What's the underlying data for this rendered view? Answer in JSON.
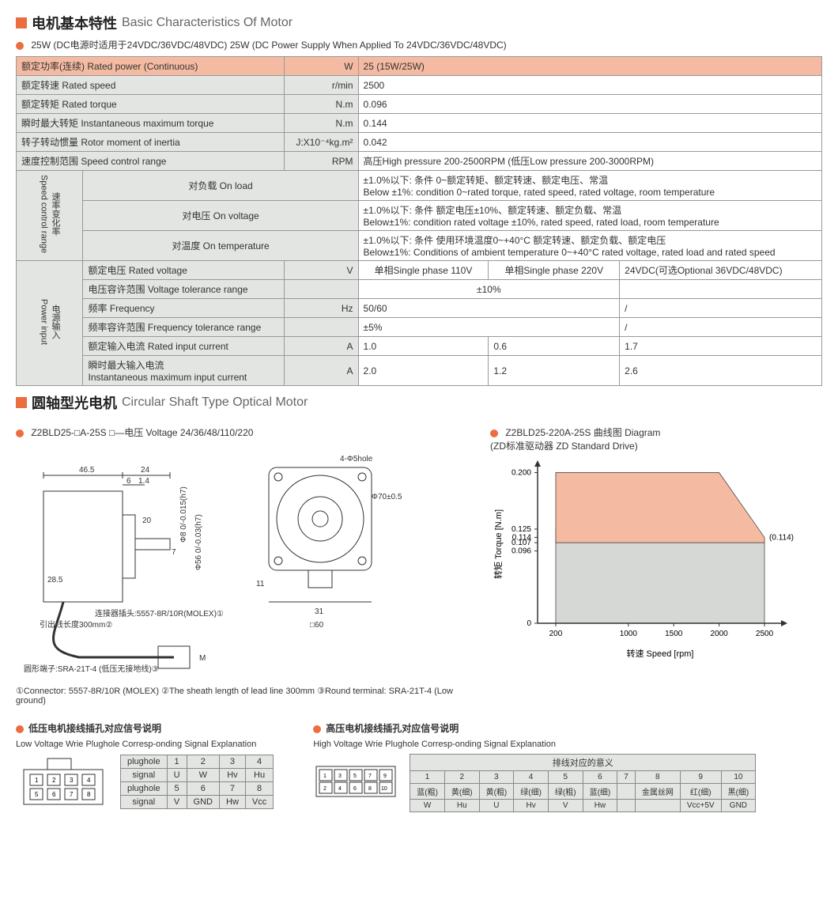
{
  "sec1": {
    "title_cn": "电机基本特性",
    "title_en": "Basic Characteristics Of Motor",
    "sub": "25W (DC电源时适用于24VDC/36VDC/48VDC)  25W (DC Power Supply When Applied To 24VDC/36VDC/48VDC)"
  },
  "spec": {
    "r1": {
      "label": "额定功率(连续) Rated power (Continuous)",
      "unit": "W",
      "val": "25 (15W/25W)"
    },
    "r2": {
      "label": "额定转速 Rated speed",
      "unit": "r/min",
      "val": "2500"
    },
    "r3": {
      "label": "额定转矩 Rated torque",
      "unit": "N.m",
      "val": "0.096"
    },
    "r4": {
      "label": "瞬时最大转矩 Instantaneous maximum torque",
      "unit": "N.m",
      "val": "0.144"
    },
    "r5": {
      "label": "转子转动惯量 Rotor moment of inertia",
      "unit": "J:X10⁻⁴kg.m²",
      "val": "0.042"
    },
    "r6": {
      "label": "速度控制范围 Speed control range",
      "unit": "RPM",
      "val": "高压High pressure 200-2500RPM (低压Low pressure 200-3000RPM)"
    },
    "scr_group": "速率变化率\nSpeed control range",
    "scr1": {
      "label": "对负载 On load",
      "val": "±1.0%以下: 条件 0~额定转矩、额定转速、额定电压、常温\nBelow ±1%: condition 0~rated torque, rated speed, rated voltage, room temperature"
    },
    "scr2": {
      "label": "对电压 On voltage",
      "val": "±1.0%以下: 条件 额定电压±10%、额定转速、额定负载、常温\nBelow±1%: condition rated voltage ±10%, rated speed, rated load, room temperature"
    },
    "scr3": {
      "label": "对温度 On temperature",
      "val": "±1.0%以下:  条件 使用环境温度0~+40°C 额定转速、额定负载、额定电压\nBelow±1%: Conditions of ambient temperature 0~+40°C rated voltage, rated load and rated speed"
    },
    "pi_group": "电源输入\nPower input",
    "pi1": {
      "label": "额定电压 Rated voltage",
      "unit": "V",
      "v1": "单相Single phase 110V",
      "v2": "单相Single phase 220V",
      "v3": "24VDC(可选Optional 36VDC/48VDC)"
    },
    "pi2": {
      "label": "电压容许范围 Voltage tolerance range",
      "unit": "",
      "v12": "±10%",
      "v3": ""
    },
    "pi3": {
      "label": "频率 Frequency",
      "unit": "Hz",
      "v12": "50/60",
      "v3": "/"
    },
    "pi4": {
      "label": "频率容许范围 Frequency tolerance range",
      "unit": "",
      "v12": "±5%",
      "v3": "/"
    },
    "pi5": {
      "label": "额定输入电流 Rated input current",
      "unit": "A",
      "v1": "1.0",
      "v2": "0.6",
      "v3": "1.7"
    },
    "pi6": {
      "label": "瞬时最大输入电流\nInstantaneous maximum input current",
      "unit": "A",
      "v1": "2.0",
      "v2": "1.2",
      "v3": "2.6"
    }
  },
  "sec2": {
    "title_cn": "圆轴型光电机",
    "title_en": "Circular Shaft Type Optical Motor",
    "model": "Z2BLD25-□A-25S   □—电压 Voltage 24/36/48/110/220",
    "dims": {
      "d465": "46.5",
      "d24": "24",
      "d6": "6",
      "d14": "1.4",
      "d20": "20",
      "d7": "7",
      "d285": "28.5",
      "h7a": "Φ8 0/-0.015(h7)",
      "h7b": "Φ56 0/-0.03(h7)",
      "conn": "连接器插头:5557-8R/10R(MOLEX)①",
      "lead": "引出线长度300mm②",
      "term": "圆形端子:SRA-21T-4\n(低压无接地线)③",
      "m": "M",
      "hole": "4-Φ5hole",
      "d70": "Φ70±0.5",
      "d31": "31",
      "d11": "11",
      "sq60": "□60"
    },
    "footnote": "①Connector: 5557-8R/10R (MOLEX)  ②The sheath length of lead line 300mm  ③Round terminal: SRA-21T-4 (Low ground)"
  },
  "chart": {
    "title": "Z2BLD25-220A-25S 曲线图 Diagram\n(ZD标准驱动器 ZD Standard Drive)",
    "x_label": "转速 Speed [rpm]",
    "y_label": "转矩 Torque [N.m]",
    "x_ticks": [
      "200",
      "1000",
      "1500",
      "2000",
      "2500"
    ],
    "y_ticks": [
      "0",
      "0.096",
      "0.107",
      "0.114",
      "0.125",
      "0.200"
    ],
    "annot": "(0.114)",
    "orange_region": {
      "points": [
        [
          200,
          0.2
        ],
        [
          2000,
          0.2
        ],
        [
          2500,
          0.114
        ],
        [
          2500,
          0.107
        ],
        [
          200,
          0.107
        ]
      ]
    },
    "gray_region": {
      "points": [
        [
          200,
          0.125
        ],
        [
          2000,
          0.125
        ],
        [
          2500,
          0.107
        ],
        [
          2500,
          0
        ],
        [
          200,
          0
        ]
      ]
    },
    "colors": {
      "orange": "#f5bba2",
      "gray": "#d6d8d5",
      "line": "#333"
    },
    "xlim": [
      0,
      2700
    ],
    "ylim": [
      0,
      0.21
    ]
  },
  "lv": {
    "title_cn": "低压电机接线插孔对应信号说明",
    "title_en": "Low Voltage  Wrie Plughole Corresp-onding Signal Explanation",
    "headers": [
      "plughole",
      "1",
      "2",
      "3",
      "4"
    ],
    "r1": [
      "signal",
      "U",
      "W",
      "Hv",
      "Hu"
    ],
    "r2": [
      "plughole",
      "5",
      "6",
      "7",
      "8"
    ],
    "r3": [
      "signal",
      "V",
      "GND",
      "Hw",
      "Vcc"
    ]
  },
  "hv": {
    "title_cn": "高压电机接线插孔对应信号说明",
    "title_en": "High Voltage  Wrie Plughole Corresp-onding Signal Explanation",
    "top": "排线对应的意义",
    "nums": [
      "1",
      "2",
      "3",
      "4",
      "5",
      "6",
      "7",
      "8",
      "9",
      "10"
    ],
    "r1": [
      "蓝(粗)",
      "黄(细)",
      "黄(粗)",
      "绿(细)",
      "绿(粗)",
      "蓝(细)",
      "",
      "金属丝网",
      "红(细)",
      "黑(细)"
    ],
    "r2": [
      "W",
      "Hu",
      "U",
      "Hv",
      "V",
      "Hw",
      "",
      "",
      "Vcc+5V",
      "GND"
    ]
  }
}
